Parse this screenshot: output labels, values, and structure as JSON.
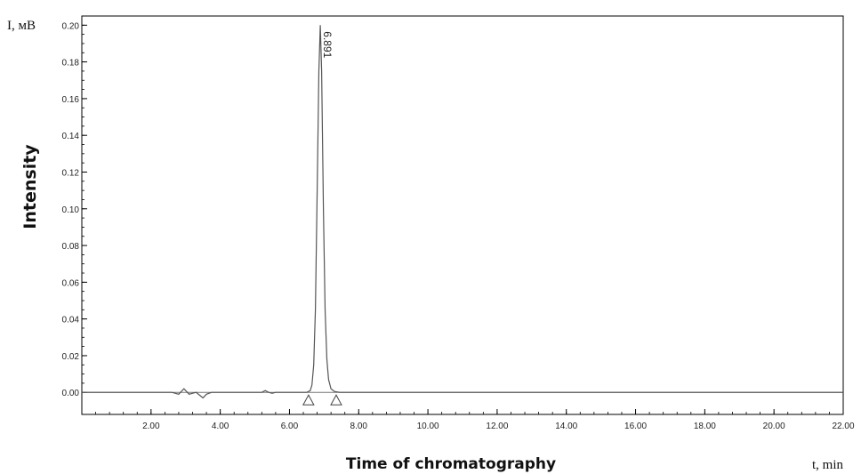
{
  "chart_data": {
    "type": "line",
    "ylabel": "Intensity",
    "xlabel": "Time of chromatography",
    "y_unit_label": "I, мВ",
    "x_unit_label": "t, min",
    "xlim": [
      0.0,
      22.0
    ],
    "ylim": [
      -0.012,
      0.205
    ],
    "x_ticks": [
      "2.00",
      "4.00",
      "6.00",
      "8.00",
      "10.00",
      "12.00",
      "14.00",
      "16.00",
      "18.00",
      "20.00",
      "22.00"
    ],
    "y_ticks": [
      "0.00",
      "0.02",
      "0.04",
      "0.06",
      "0.08",
      "0.10",
      "0.12",
      "0.14",
      "0.16",
      "0.18",
      "0.20"
    ],
    "grid": false,
    "series": [
      {
        "x": [
          0.0,
          2.6,
          2.8,
          2.95,
          3.1,
          3.3,
          3.5,
          3.6,
          3.75,
          3.9,
          4.4,
          5.2,
          5.3,
          5.4,
          5.5,
          5.6,
          6.2,
          6.5,
          6.6,
          6.65,
          6.7,
          6.75,
          6.8,
          6.85,
          6.891,
          6.93,
          6.98,
          7.03,
          7.08,
          7.13,
          7.2,
          7.3,
          7.45,
          8.0,
          12.0,
          16.0,
          20.0,
          22.0
        ],
        "y": [
          0.0,
          0.0,
          -0.001,
          0.002,
          -0.001,
          0.0,
          -0.003,
          -0.001,
          0.0,
          0.0,
          0.0,
          0.0,
          0.001,
          0.0,
          -0.0005,
          0.0,
          0.0,
          0.0,
          0.001,
          0.004,
          0.015,
          0.045,
          0.11,
          0.175,
          0.2,
          0.175,
          0.1,
          0.045,
          0.018,
          0.007,
          0.002,
          0.0005,
          0.0,
          0.0,
          0.0,
          0.0,
          0.0,
          0.0
        ]
      }
    ],
    "peaks": [
      {
        "label": "6.891",
        "x": 6.891
      }
    ],
    "baseline_markers_x": [
      6.55,
      7.35
    ]
  }
}
